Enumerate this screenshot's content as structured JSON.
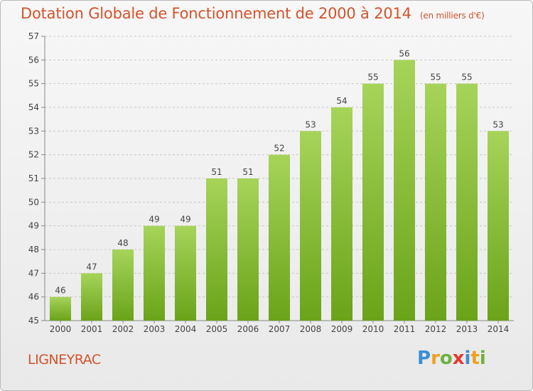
{
  "header": {
    "title": "Dotation Globale de Fonctionnement de 2000 à 2014",
    "subtitle": "(en milliers d'€)"
  },
  "footer": {
    "commune": "LIGNEYRAC",
    "logo_text": "Proxiti",
    "logo_letters": [
      "P",
      "r",
      "o",
      "x",
      "i",
      "t",
      "i"
    ],
    "logo_colors": [
      "#3a8fd6",
      "#f0a020",
      "#6cb33e",
      "#e53a2f",
      "#3a8fd6",
      "#f0a020",
      "#6cb33e"
    ]
  },
  "colors": {
    "bar_top": "#a6d45a",
    "bar_bottom": "#6aa319",
    "title": "#d2532c",
    "grid": "#c8c8c8"
  },
  "chart_data": {
    "type": "bar",
    "title": "Dotation Globale de Fonctionnement de 2000 à 2014",
    "subtitle": "(en milliers d'€)",
    "xlabel": "",
    "ylabel": "",
    "categories": [
      "2000",
      "2001",
      "2002",
      "2003",
      "2004",
      "2005",
      "2006",
      "2007",
      "2008",
      "2009",
      "2010",
      "2011",
      "2012",
      "2013",
      "2014"
    ],
    "values": [
      46,
      47,
      48,
      49,
      49,
      51,
      51,
      52,
      53,
      54,
      55,
      56,
      55,
      55,
      53
    ],
    "ylim": [
      45,
      57
    ],
    "yticks": [
      45,
      46,
      47,
      48,
      49,
      50,
      51,
      52,
      53,
      54,
      55,
      56,
      57
    ],
    "grid": true,
    "data_labels": true
  }
}
